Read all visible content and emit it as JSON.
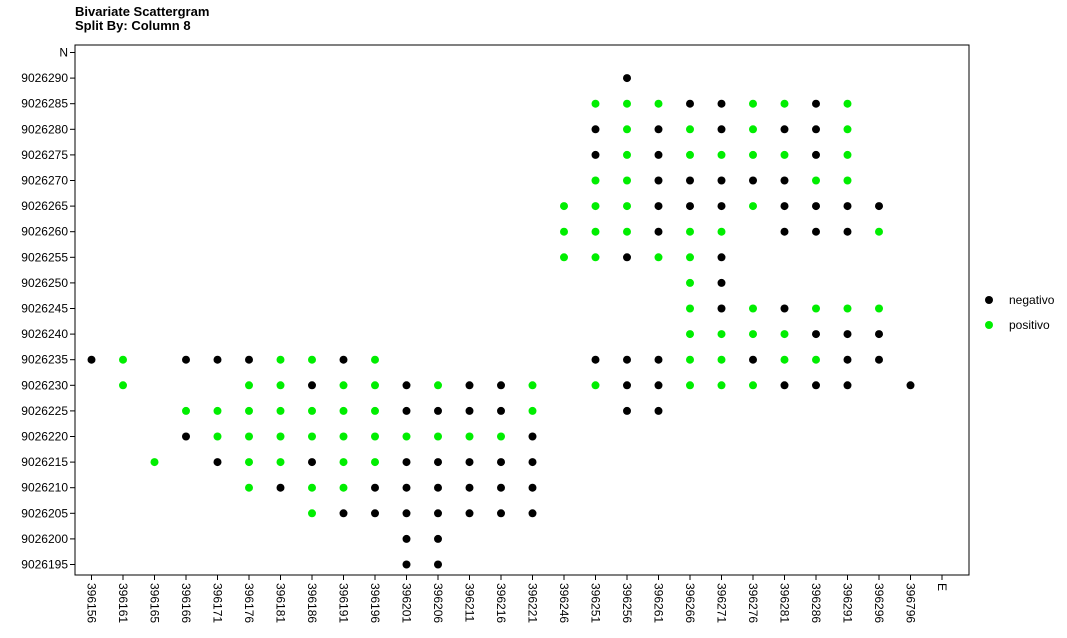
{
  "title": "Bivariate Scattergram",
  "subtitle": "Split By: Column 8",
  "colors": {
    "negativo": "#000000",
    "positivo": "#00ee00"
  },
  "chart_data": {
    "type": "scatter",
    "title": "Bivariate Scattergram",
    "subtitle": "Split By: Column 8",
    "x_categories": [
      "396156",
      "396161",
      "396165",
      "396166",
      "396171",
      "396176",
      "396181",
      "396186",
      "396191",
      "396196",
      "396201",
      "396206",
      "396211",
      "396216",
      "396221",
      "396246",
      "396251",
      "396256",
      "396261",
      "396266",
      "396271",
      "396276",
      "396281",
      "396286",
      "396291",
      "396296",
      "396796",
      "E"
    ],
    "y_categories": [
      "9026195",
      "9026200",
      "9026205",
      "9026210",
      "9026215",
      "9026220",
      "9026225",
      "9026230",
      "9026235",
      "9026240",
      "9026245",
      "9026250",
      "9026255",
      "9026260",
      "9026265",
      "9026270",
      "9026275",
      "9026280",
      "9026285",
      "9026290",
      "N"
    ],
    "grid": false,
    "legend_position": "right",
    "series": [
      {
        "name": "negativo",
        "color": "#000000",
        "points": [
          [
            "396156",
            "9026235"
          ],
          [
            "396166",
            "9026235"
          ],
          [
            "396166",
            "9026220"
          ],
          [
            "396171",
            "9026235"
          ],
          [
            "396171",
            "9026215"
          ],
          [
            "396176",
            "9026235"
          ],
          [
            "396181",
            "9026210"
          ],
          [
            "396186",
            "9026230"
          ],
          [
            "396186",
            "9026215"
          ],
          [
            "396191",
            "9026235"
          ],
          [
            "396191",
            "9026205"
          ],
          [
            "396196",
            "9026210"
          ],
          [
            "396196",
            "9026205"
          ],
          [
            "396201",
            "9026230"
          ],
          [
            "396201",
            "9026225"
          ],
          [
            "396201",
            "9026215"
          ],
          [
            "396201",
            "9026210"
          ],
          [
            "396201",
            "9026205"
          ],
          [
            "396201",
            "9026200"
          ],
          [
            "396201",
            "9026195"
          ],
          [
            "396206",
            "9026225"
          ],
          [
            "396206",
            "9026215"
          ],
          [
            "396206",
            "9026210"
          ],
          [
            "396206",
            "9026205"
          ],
          [
            "396206",
            "9026200"
          ],
          [
            "396206",
            "9026195"
          ],
          [
            "396211",
            "9026230"
          ],
          [
            "396211",
            "9026225"
          ],
          [
            "396211",
            "9026215"
          ],
          [
            "396211",
            "9026210"
          ],
          [
            "396211",
            "9026205"
          ],
          [
            "396216",
            "9026230"
          ],
          [
            "396216",
            "9026225"
          ],
          [
            "396216",
            "9026215"
          ],
          [
            "396216",
            "9026210"
          ],
          [
            "396216",
            "9026205"
          ],
          [
            "396221",
            "9026220"
          ],
          [
            "396221",
            "9026215"
          ],
          [
            "396221",
            "9026210"
          ],
          [
            "396221",
            "9026205"
          ],
          [
            "396251",
            "9026280"
          ],
          [
            "396251",
            "9026275"
          ],
          [
            "396251",
            "9026235"
          ],
          [
            "396256",
            "9026290"
          ],
          [
            "396256",
            "9026255"
          ],
          [
            "396256",
            "9026235"
          ],
          [
            "396256",
            "9026230"
          ],
          [
            "396256",
            "9026225"
          ],
          [
            "396261",
            "9026280"
          ],
          [
            "396261",
            "9026275"
          ],
          [
            "396261",
            "9026270"
          ],
          [
            "396261",
            "9026265"
          ],
          [
            "396261",
            "9026260"
          ],
          [
            "396261",
            "9026235"
          ],
          [
            "396261",
            "9026230"
          ],
          [
            "396261",
            "9026225"
          ],
          [
            "396266",
            "9026285"
          ],
          [
            "396266",
            "9026270"
          ],
          [
            "396266",
            "9026265"
          ],
          [
            "396271",
            "9026285"
          ],
          [
            "396271",
            "9026280"
          ],
          [
            "396271",
            "9026270"
          ],
          [
            "396271",
            "9026265"
          ],
          [
            "396271",
            "9026255"
          ],
          [
            "396271",
            "9026250"
          ],
          [
            "396271",
            "9026245"
          ],
          [
            "396276",
            "9026270"
          ],
          [
            "396276",
            "9026235"
          ],
          [
            "396281",
            "9026280"
          ],
          [
            "396281",
            "9026270"
          ],
          [
            "396281",
            "9026265"
          ],
          [
            "396281",
            "9026260"
          ],
          [
            "396281",
            "9026245"
          ],
          [
            "396281",
            "9026230"
          ],
          [
            "396286",
            "9026285"
          ],
          [
            "396286",
            "9026280"
          ],
          [
            "396286",
            "9026275"
          ],
          [
            "396286",
            "9026265"
          ],
          [
            "396286",
            "9026260"
          ],
          [
            "396286",
            "9026240"
          ],
          [
            "396286",
            "9026230"
          ],
          [
            "396291",
            "9026265"
          ],
          [
            "396291",
            "9026260"
          ],
          [
            "396291",
            "9026240"
          ],
          [
            "396291",
            "9026235"
          ],
          [
            "396291",
            "9026230"
          ],
          [
            "396296",
            "9026265"
          ],
          [
            "396296",
            "9026240"
          ],
          [
            "396296",
            "9026235"
          ],
          [
            "396796",
            "9026230"
          ]
        ]
      },
      {
        "name": "positivo",
        "color": "#00ee00",
        "points": [
          [
            "396161",
            "9026235"
          ],
          [
            "396161",
            "9026230"
          ],
          [
            "396165",
            "9026215"
          ],
          [
            "396166",
            "9026225"
          ],
          [
            "396171",
            "9026225"
          ],
          [
            "396171",
            "9026220"
          ],
          [
            "396176",
            "9026230"
          ],
          [
            "396176",
            "9026225"
          ],
          [
            "396176",
            "9026220"
          ],
          [
            "396176",
            "9026215"
          ],
          [
            "396176",
            "9026210"
          ],
          [
            "396181",
            "9026235"
          ],
          [
            "396181",
            "9026230"
          ],
          [
            "396181",
            "9026225"
          ],
          [
            "396181",
            "9026220"
          ],
          [
            "396181",
            "9026215"
          ],
          [
            "396186",
            "9026235"
          ],
          [
            "396186",
            "9026225"
          ],
          [
            "396186",
            "9026220"
          ],
          [
            "396186",
            "9026210"
          ],
          [
            "396186",
            "9026205"
          ],
          [
            "396191",
            "9026230"
          ],
          [
            "396191",
            "9026225"
          ],
          [
            "396191",
            "9026220"
          ],
          [
            "396191",
            "9026215"
          ],
          [
            "396191",
            "9026210"
          ],
          [
            "396196",
            "9026235"
          ],
          [
            "396196",
            "9026230"
          ],
          [
            "396196",
            "9026225"
          ],
          [
            "396196",
            "9026220"
          ],
          [
            "396196",
            "9026215"
          ],
          [
            "396201",
            "9026220"
          ],
          [
            "396206",
            "9026230"
          ],
          [
            "396206",
            "9026220"
          ],
          [
            "396211",
            "9026220"
          ],
          [
            "396216",
            "9026220"
          ],
          [
            "396221",
            "9026230"
          ],
          [
            "396221",
            "9026225"
          ],
          [
            "396246",
            "9026265"
          ],
          [
            "396246",
            "9026260"
          ],
          [
            "396246",
            "9026255"
          ],
          [
            "396251",
            "9026285"
          ],
          [
            "396251",
            "9026270"
          ],
          [
            "396251",
            "9026265"
          ],
          [
            "396251",
            "9026260"
          ],
          [
            "396251",
            "9026255"
          ],
          [
            "396251",
            "9026230"
          ],
          [
            "396256",
            "9026285"
          ],
          [
            "396256",
            "9026280"
          ],
          [
            "396256",
            "9026275"
          ],
          [
            "396256",
            "9026270"
          ],
          [
            "396256",
            "9026265"
          ],
          [
            "396256",
            "9026260"
          ],
          [
            "396261",
            "9026285"
          ],
          [
            "396261",
            "9026255"
          ],
          [
            "396266",
            "9026280"
          ],
          [
            "396266",
            "9026275"
          ],
          [
            "396266",
            "9026260"
          ],
          [
            "396266",
            "9026255"
          ],
          [
            "396266",
            "9026250"
          ],
          [
            "396266",
            "9026245"
          ],
          [
            "396266",
            "9026240"
          ],
          [
            "396266",
            "9026235"
          ],
          [
            "396266",
            "9026230"
          ],
          [
            "396271",
            "9026275"
          ],
          [
            "396271",
            "9026260"
          ],
          [
            "396271",
            "9026240"
          ],
          [
            "396271",
            "9026235"
          ],
          [
            "396271",
            "9026230"
          ],
          [
            "396276",
            "9026285"
          ],
          [
            "396276",
            "9026280"
          ],
          [
            "396276",
            "9026275"
          ],
          [
            "396276",
            "9026265"
          ],
          [
            "396276",
            "9026245"
          ],
          [
            "396276",
            "9026240"
          ],
          [
            "396276",
            "9026230"
          ],
          [
            "396281",
            "9026285"
          ],
          [
            "396281",
            "9026275"
          ],
          [
            "396281",
            "9026240"
          ],
          [
            "396281",
            "9026235"
          ],
          [
            "396286",
            "9026270"
          ],
          [
            "396286",
            "9026245"
          ],
          [
            "396286",
            "9026235"
          ],
          [
            "396291",
            "9026285"
          ],
          [
            "396291",
            "9026280"
          ],
          [
            "396291",
            "9026275"
          ],
          [
            "396291",
            "9026270"
          ],
          [
            "396291",
            "9026245"
          ],
          [
            "396296",
            "9026260"
          ],
          [
            "396296",
            "9026245"
          ]
        ]
      }
    ]
  }
}
